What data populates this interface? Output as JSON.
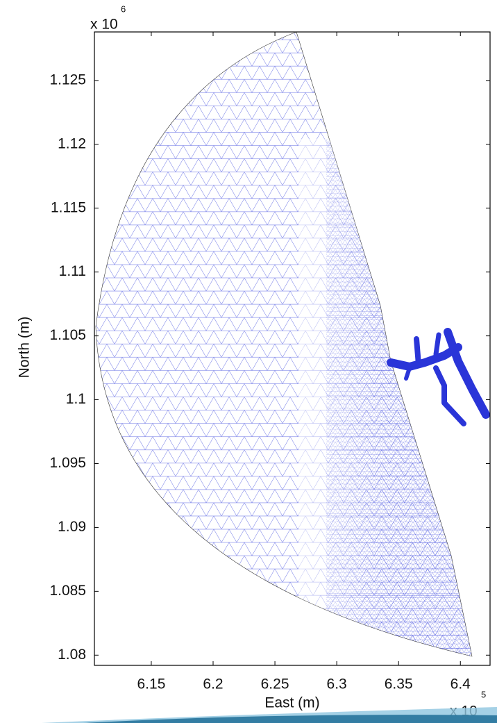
{
  "chart_data": {
    "type": "mesh",
    "x_label": "East (m)",
    "y_label": "North (m)",
    "x_multiplier": "x 10",
    "x_multiplier_exp": "5",
    "y_multiplier": "x 10",
    "y_multiplier_exp": "6",
    "xlim": [
      6.104,
      6.424
    ],
    "xticks": [
      6.15,
      6.2,
      6.25,
      6.3,
      6.35,
      6.4
    ],
    "ylim": [
      1.0792,
      1.1288
    ],
    "yticks": [
      1.08,
      1.085,
      1.09,
      1.095,
      1.1,
      1.105,
      1.11,
      1.115,
      1.12,
      1.125
    ],
    "color": "#2a35d8"
  }
}
